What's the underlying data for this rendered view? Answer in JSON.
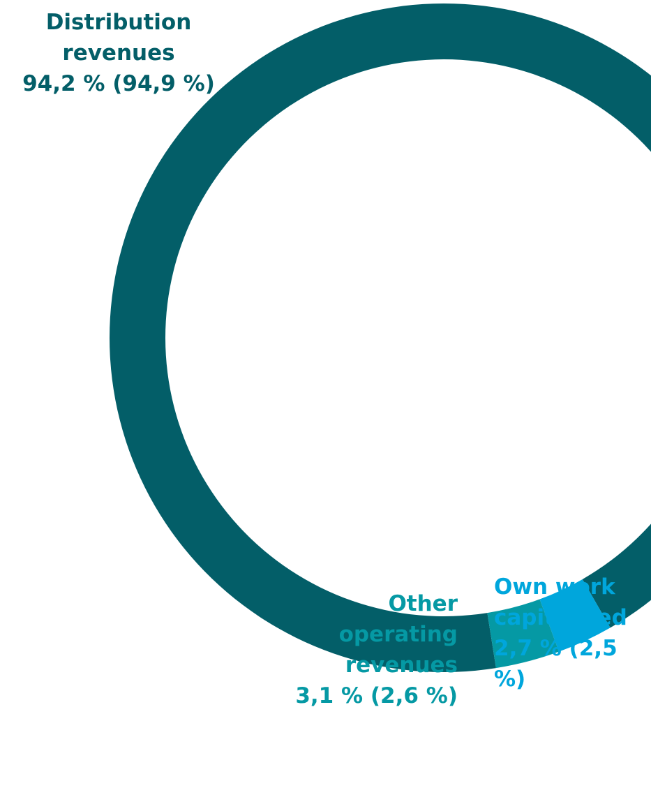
{
  "chart_data": {
    "type": "pie",
    "donut": true,
    "slices": [
      {
        "label_lines": [
          "Distribution",
          "revenues"
        ],
        "value_text": "94,2 % (94,9 %)",
        "value": 94.2,
        "previous": 94.9,
        "color": "#035e68"
      },
      {
        "label_lines": [
          "Own work",
          "capitalised"
        ],
        "value_text": "2,7 % (2,5 %)",
        "value": 2.7,
        "previous": 2.5,
        "color": "#00a6dc"
      },
      {
        "label_lines": [
          "Other",
          "operating",
          "revenues"
        ],
        "value_text": "3,1 % (2,6 %)",
        "value": 3.1,
        "previous": 2.6,
        "color": "#0599a4"
      }
    ]
  }
}
